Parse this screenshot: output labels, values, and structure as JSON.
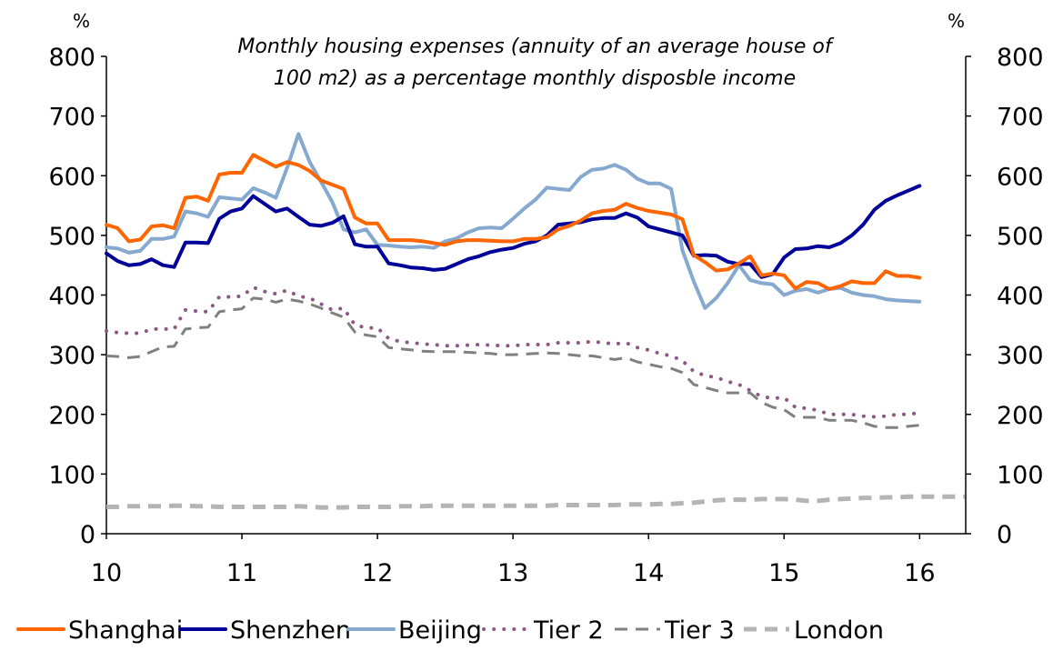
{
  "chart_data": {
    "type": "line",
    "title": [
      "Monthly housing expenses  (annuity of an average house of",
      "100 m2) as a percentage monthly disposble income"
    ],
    "left_unit": "%",
    "right_unit": "%",
    "xlim": [
      10,
      16.34
    ],
    "ylim": [
      0,
      800
    ],
    "x_ticks": [
      "10",
      "11",
      "12",
      "13",
      "14",
      "15",
      "16"
    ],
    "y_ticks": [
      "0",
      "100",
      "200",
      "300",
      "400",
      "500",
      "600",
      "700",
      "800"
    ],
    "x_start": 10,
    "x_step_months": 1,
    "grid": false,
    "legend_position": "bottom",
    "series": [
      {
        "name": "Shanghai",
        "color": "#FF6600",
        "style": "solid",
        "values": [
          518,
          512,
          490,
          493,
          515,
          517,
          512,
          563,
          565,
          558,
          602,
          605,
          605,
          635,
          625,
          615,
          623,
          618,
          608,
          592,
          585,
          578,
          530,
          520,
          520,
          492,
          492,
          492,
          490,
          487,
          484,
          490,
          492,
          492,
          491,
          490,
          490,
          494,
          494,
          497,
          510,
          516,
          525,
          537,
          541,
          543,
          553,
          546,
          541,
          538,
          535,
          527,
          467,
          455,
          441,
          443,
          453,
          465,
          433,
          436,
          433,
          411,
          422,
          420,
          410,
          415,
          423,
          420,
          420,
          440,
          432,
          432,
          429
        ]
      },
      {
        "name": "Shenzhen",
        "color": "#000099",
        "style": "solid",
        "values": [
          470,
          457,
          450,
          452,
          460,
          450,
          447,
          488,
          488,
          487,
          528,
          540,
          545,
          566,
          553,
          540,
          545,
          531,
          518,
          516,
          521,
          532,
          485,
          481,
          481,
          453,
          450,
          446,
          445,
          442,
          444,
          452,
          460,
          465,
          472,
          476,
          479,
          486,
          490,
          500,
          518,
          520,
          522,
          527,
          529,
          529,
          537,
          530,
          515,
          510,
          505,
          500,
          466,
          467,
          466,
          456,
          452,
          452,
          430,
          435,
          463,
          477,
          478,
          482,
          480,
          487,
          500,
          518,
          543,
          558,
          567,
          575,
          583
        ]
      },
      {
        "name": "Beijing",
        "color": "#86A9CF",
        "style": "solid",
        "values": [
          480,
          478,
          471,
          474,
          494,
          494,
          498,
          540,
          537,
          531,
          564,
          562,
          560,
          579,
          572,
          563,
          613,
          670,
          623,
          590,
          556,
          510,
          505,
          510,
          484,
          483,
          481,
          480,
          481,
          479,
          490,
          495,
          505,
          512,
          513,
          512,
          528,
          545,
          560,
          580,
          578,
          576,
          598,
          610,
          612,
          618,
          610,
          595,
          587,
          587,
          578,
          475,
          423,
          378,
          395,
          420,
          450,
          425,
          420,
          418,
          400,
          407,
          410,
          404,
          410,
          412,
          404,
          400,
          398,
          393,
          391,
          390,
          389
        ]
      },
      {
        "name": "Tier 2",
        "color": "#8B5A83",
        "style": "dotted",
        "values": [
          340,
          337,
          336,
          336,
          343,
          343,
          343,
          375,
          373,
          372,
          397,
          397,
          398,
          413,
          406,
          402,
          408,
          398,
          395,
          385,
          375,
          378,
          350,
          345,
          345,
          327,
          322,
          320,
          318,
          317,
          315,
          315,
          316,
          317,
          316,
          315,
          315,
          317,
          317,
          317,
          320,
          320,
          320,
          322,
          320,
          318,
          320,
          312,
          308,
          302,
          298,
          290,
          272,
          265,
          262,
          255,
          250,
          240,
          230,
          227,
          228,
          212,
          210,
          207,
          200,
          200,
          200,
          197,
          196,
          197,
          200,
          200,
          203
        ]
      },
      {
        "name": "Tier 3",
        "color": "#808080",
        "style": "dashed",
        "values": [
          298,
          297,
          295,
          297,
          305,
          313,
          314,
          343,
          345,
          346,
          372,
          375,
          377,
          395,
          393,
          388,
          393,
          390,
          385,
          378,
          370,
          363,
          338,
          333,
          330,
          312,
          310,
          308,
          306,
          305,
          305,
          305,
          304,
          303,
          302,
          300,
          300,
          301,
          302,
          303,
          302,
          300,
          298,
          298,
          295,
          292,
          295,
          288,
          284,
          280,
          277,
          270,
          250,
          245,
          240,
          236,
          236,
          236,
          220,
          212,
          208,
          195,
          195,
          195,
          190,
          190,
          190,
          186,
          180,
          178,
          178,
          180,
          182
        ]
      },
      {
        "name": "London",
        "color": "#B4B4B4",
        "style": "dashed-thick",
        "values": [
          45,
          45,
          46,
          46,
          46,
          46,
          47,
          47,
          46,
          46,
          45,
          45,
          45,
          45,
          45,
          45,
          45,
          46,
          45,
          44,
          44,
          44,
          45,
          45,
          45,
          45,
          46,
          46,
          46,
          47,
          47,
          47,
          47,
          47,
          47,
          47,
          47,
          47,
          47,
          47,
          48,
          48,
          48,
          48,
          48,
          48,
          49,
          49,
          49,
          50,
          50,
          51,
          52,
          54,
          56,
          57,
          57,
          57,
          58,
          58,
          58,
          57,
          55,
          55,
          57,
          58,
          59,
          60,
          60,
          61,
          61,
          62,
          62,
          62,
          62,
          62,
          62
        ]
      }
    ]
  }
}
